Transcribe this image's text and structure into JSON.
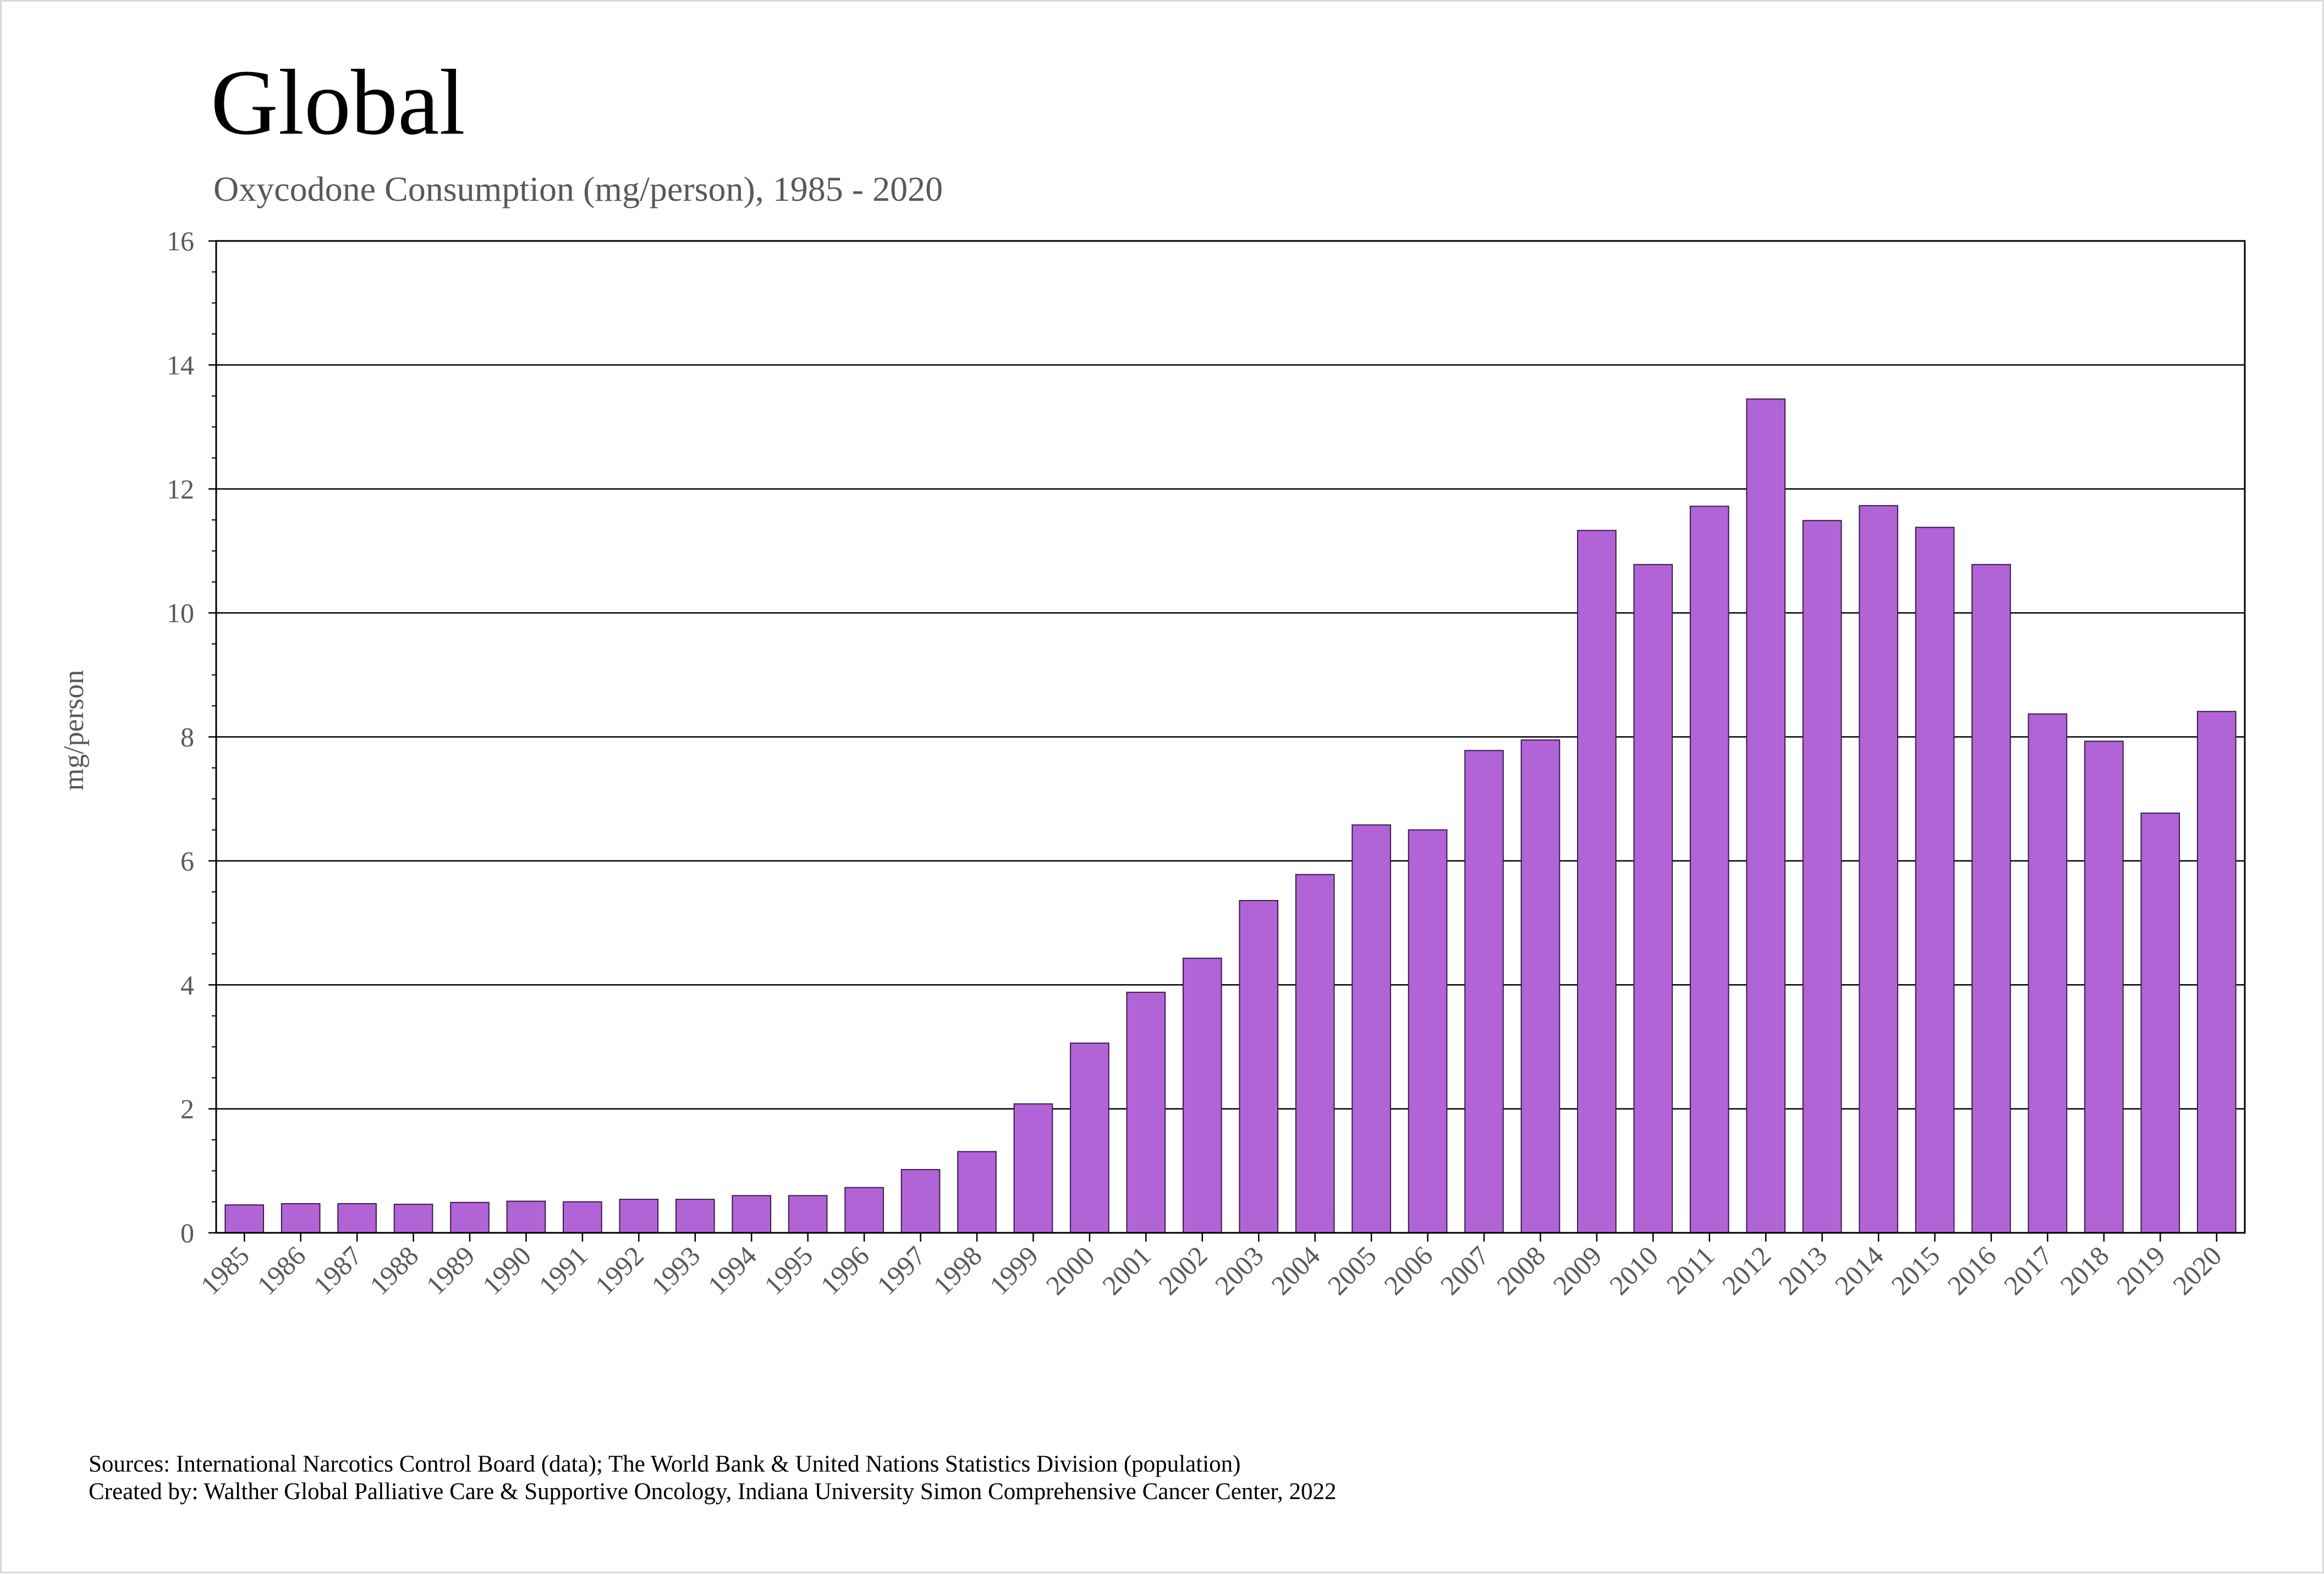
{
  "chart_data": {
    "type": "bar",
    "title": "Global",
    "subtitle": "Oxycodone Consumption (mg/person), 1985 - 2020",
    "xlabel": "",
    "ylabel": "mg/person",
    "ylim": [
      0,
      16
    ],
    "yticks": [
      0,
      2,
      4,
      6,
      8,
      10,
      12,
      14,
      16
    ],
    "grid": true,
    "legend": "none",
    "bar_color": "#b264d6",
    "categories": [
      "1985",
      "1986",
      "1987",
      "1988",
      "1989",
      "1990",
      "1991",
      "1992",
      "1993",
      "1994",
      "1995",
      "1996",
      "1997",
      "1998",
      "1999",
      "2000",
      "2001",
      "2002",
      "2003",
      "2004",
      "2005",
      "2006",
      "2007",
      "2008",
      "2009",
      "2010",
      "2011",
      "2012",
      "2013",
      "2014",
      "2015",
      "2016",
      "2017",
      "2018",
      "2019",
      "2020"
    ],
    "values": [
      0.45,
      0.47,
      0.47,
      0.46,
      0.49,
      0.51,
      0.5,
      0.54,
      0.54,
      0.6,
      0.6,
      0.73,
      1.02,
      1.31,
      2.08,
      3.06,
      3.88,
      4.43,
      5.36,
      5.78,
      6.58,
      6.5,
      7.78,
      7.95,
      11.33,
      10.78,
      11.72,
      13.45,
      11.49,
      11.73,
      11.38,
      10.78,
      8.37,
      7.93,
      6.77,
      8.41
    ],
    "sources": [
      "Sources: International Narcotics Control Board (data); The World Bank & United Nations Statistics Division (population)",
      "Created by: Walther Global Palliative Care & Supportive Oncology, Indiana University Simon Comprehensive Cancer Center, 2022"
    ]
  }
}
